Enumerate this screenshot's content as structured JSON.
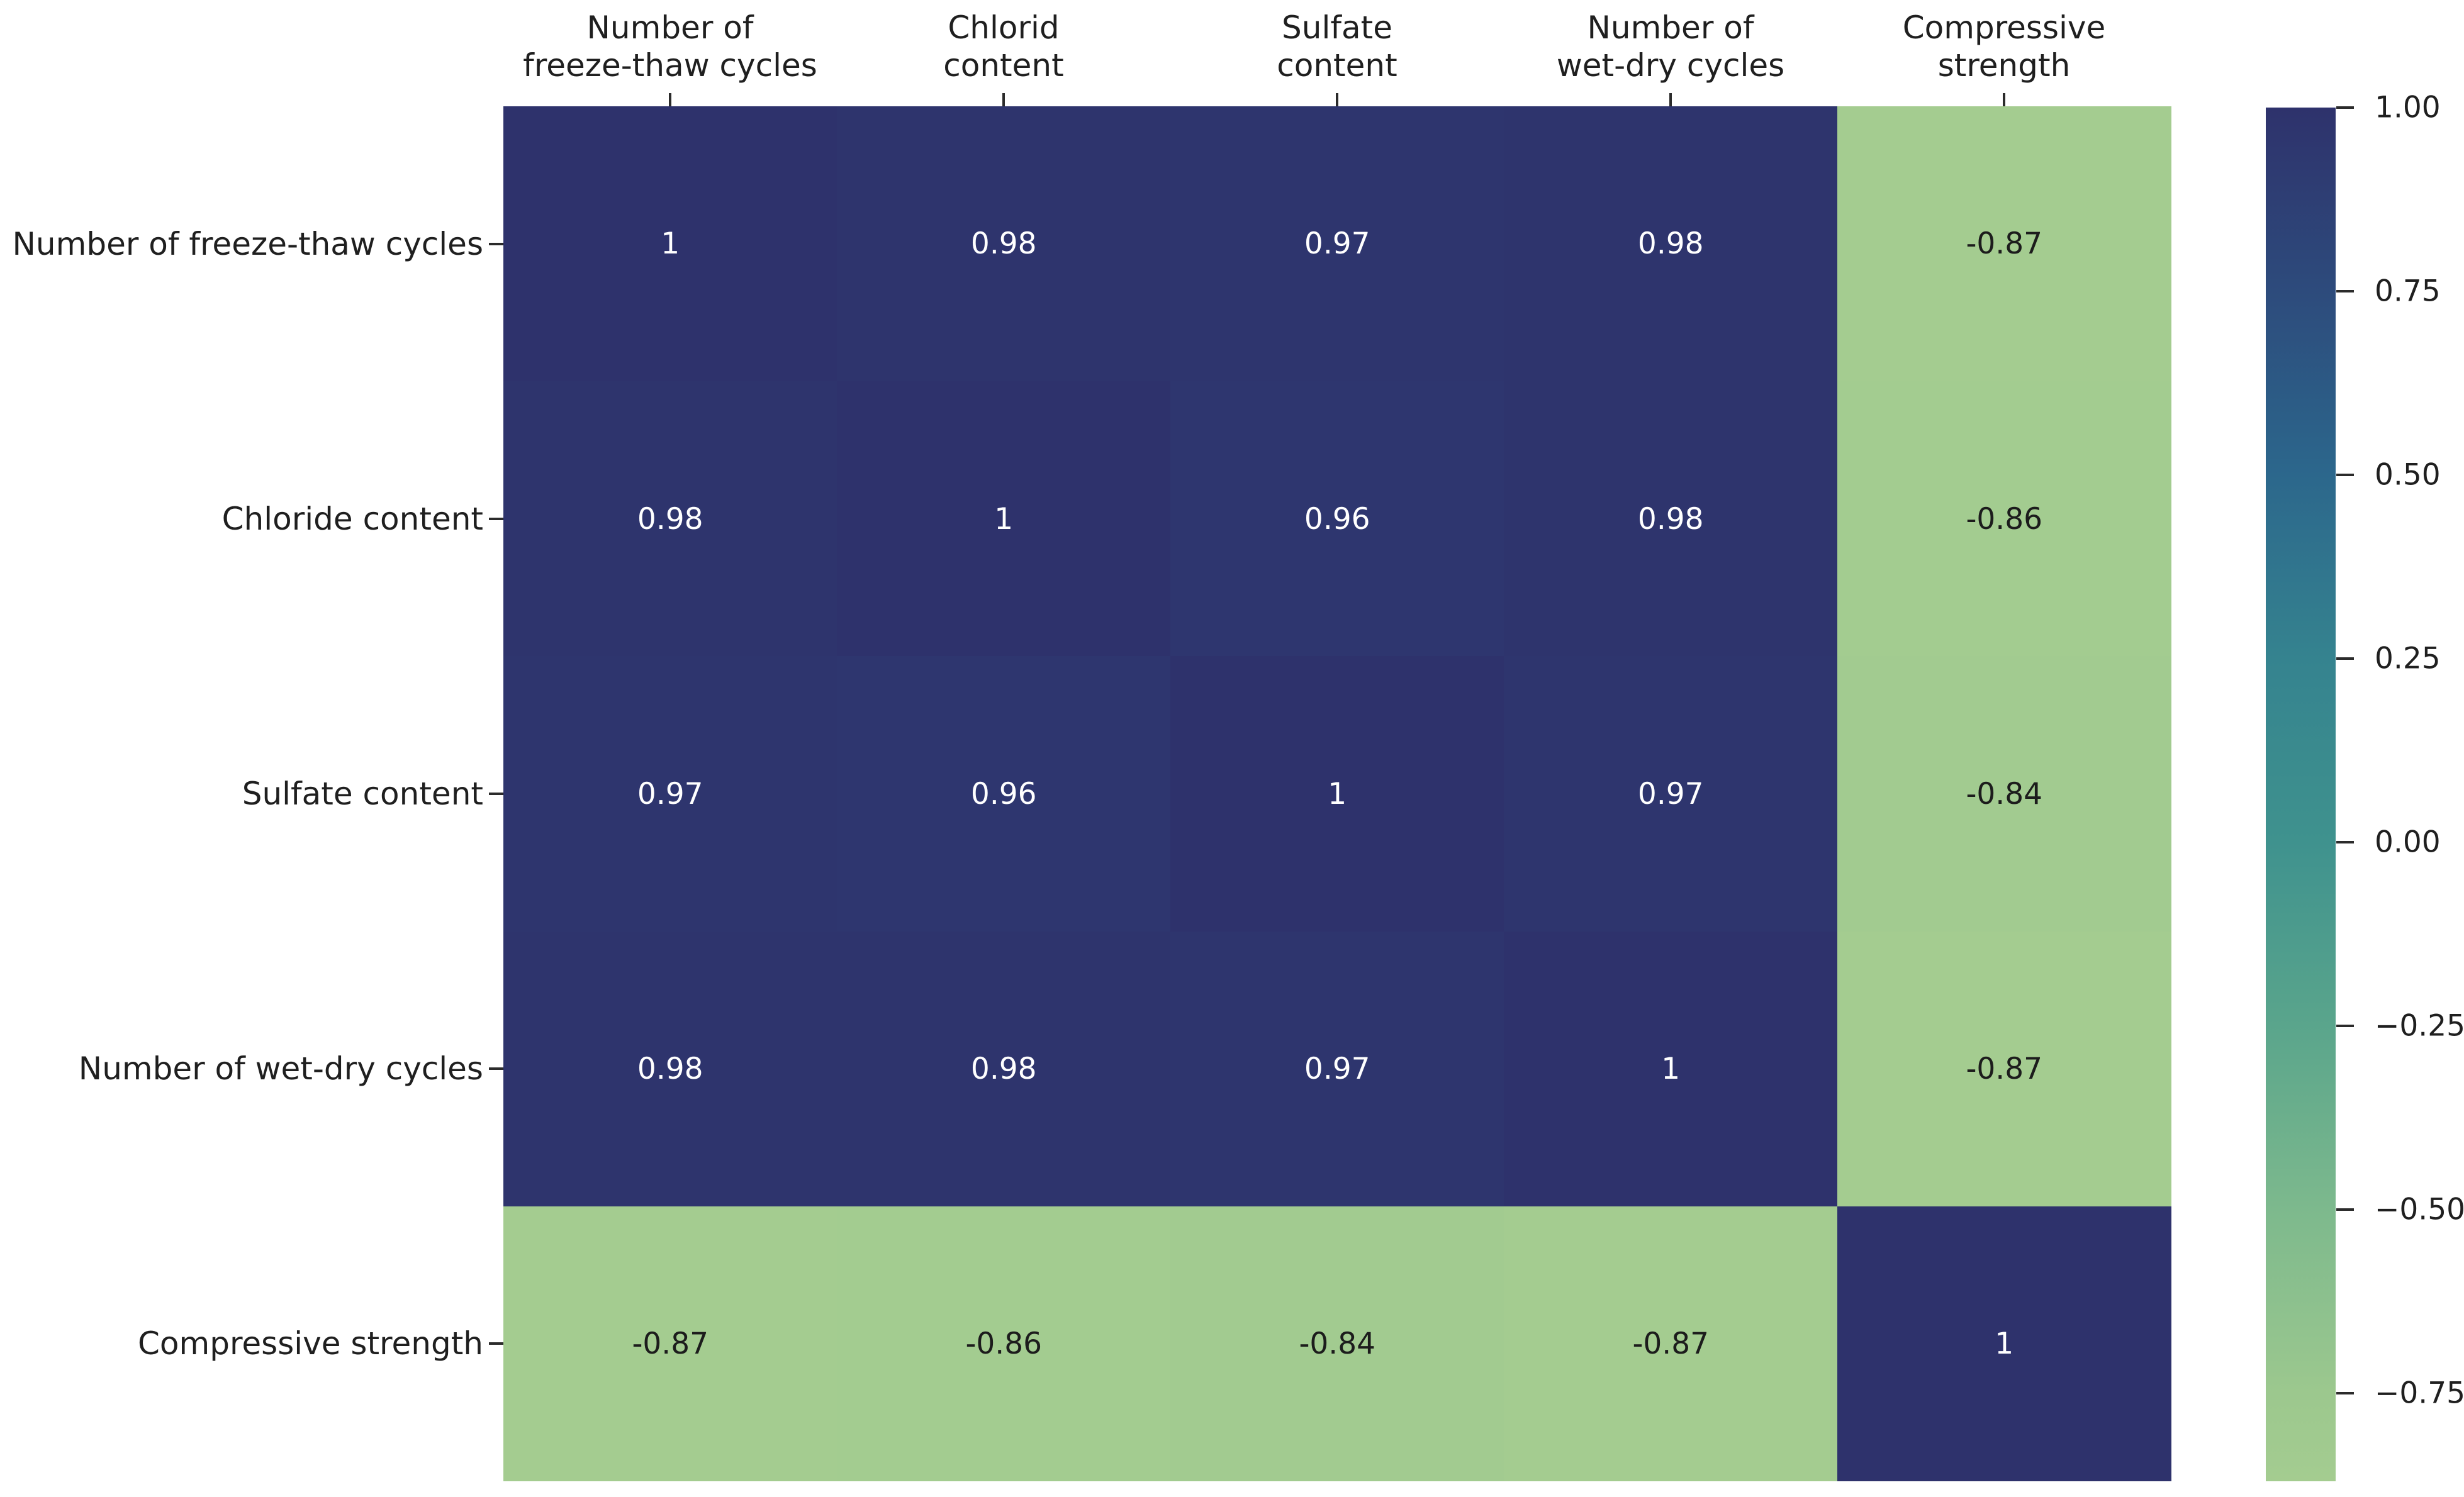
{
  "chart_data": {
    "type": "heatmap",
    "title": "",
    "col_labels": [
      [
        "Number of",
        "freeze-thaw cycles"
      ],
      [
        "Chlorid",
        "content"
      ],
      [
        "Sulfate",
        "content"
      ],
      [
        "Number of",
        "wet-dry cycles"
      ],
      [
        "Compressive",
        "strength"
      ]
    ],
    "row_labels": [
      "Number of freeze-thaw cycles",
      "Chloride content",
      "Sulfate content",
      "Number of wet-dry cycles",
      "Compressive strength"
    ],
    "matrix": [
      [
        1,
        0.98,
        0.97,
        0.98,
        -0.87
      ],
      [
        0.98,
        1,
        0.96,
        0.98,
        -0.86
      ],
      [
        0.97,
        0.96,
        1,
        0.97,
        -0.84
      ],
      [
        0.98,
        0.98,
        0.97,
        1,
        -0.87
      ],
      [
        -0.87,
        -0.86,
        -0.84,
        -0.87,
        1
      ]
    ],
    "cell_text": [
      [
        "1",
        "0.98",
        "0.97",
        "0.98",
        "-0.87"
      ],
      [
        "0.98",
        "1",
        "0.96",
        "0.98",
        "-0.86"
      ],
      [
        "0.97",
        "0.96",
        "1",
        "0.97",
        "-0.84"
      ],
      [
        "0.98",
        "0.98",
        "0.97",
        "1",
        "-0.87"
      ],
      [
        "-0.87",
        "-0.86",
        "-0.84",
        "-0.87",
        "1"
      ]
    ],
    "colorbar": {
      "vmin": -0.87,
      "vmax": 1.0,
      "tick_labels": [
        "1.00",
        "0.75",
        "0.50",
        "0.25",
        "0.00",
        "−0.25",
        "−0.50",
        "−0.75"
      ],
      "tick_values": [
        1.0,
        0.75,
        0.5,
        0.25,
        0.0,
        -0.25,
        -0.5,
        -0.75
      ],
      "colormap_stops": [
        {
          "value": 1.0,
          "color": "#2e326c"
        },
        {
          "value": 0.75,
          "color": "#2d4b7c"
        },
        {
          "value": 0.5,
          "color": "#2c678c"
        },
        {
          "value": 0.25,
          "color": "#35838f"
        },
        {
          "value": 0.0,
          "color": "#3f928e"
        },
        {
          "value": -0.25,
          "color": "#5aa58c"
        },
        {
          "value": -0.5,
          "color": "#7db98d"
        },
        {
          "value": -0.75,
          "color": "#9cc88e"
        },
        {
          "value": -0.87,
          "color": "#a4cc90"
        }
      ]
    },
    "text_color_on_dark": "#ffffff",
    "text_color_on_light": "#1c1c1c",
    "axis_text_color": "#1f1f1f",
    "legend_position": "right",
    "grid": false
  }
}
